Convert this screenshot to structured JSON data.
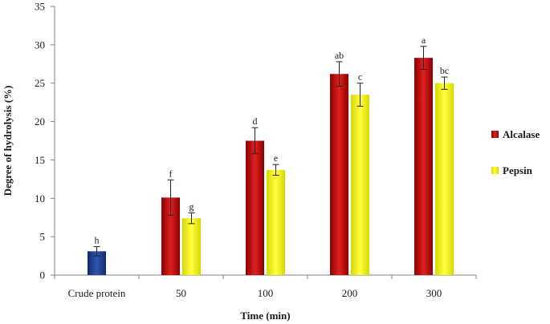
{
  "chart_data": {
    "type": "bar",
    "xlabel": "Time (min)",
    "ylabel": "Degree of hydrolysis (%)",
    "ylim": [
      0,
      35
    ],
    "yticks": [
      0,
      5,
      10,
      15,
      20,
      25,
      30,
      35
    ],
    "categories": [
      "Crude protein",
      "50",
      "100",
      "200",
      "300"
    ],
    "crude_protein": {
      "value": 3.1,
      "error": 0.6,
      "letter": "h",
      "color": "#1f3c88"
    },
    "series": [
      {
        "name": "Alcalase",
        "color": "#c00000",
        "values": [
          null,
          10.1,
          17.5,
          26.2,
          28.3
        ],
        "errors": [
          null,
          2.3,
          1.7,
          1.6,
          1.5
        ],
        "letters": [
          "",
          "f",
          "d",
          "ab",
          "a"
        ]
      },
      {
        "name": "Pepsin",
        "color": "#ffff00",
        "values": [
          null,
          7.4,
          13.7,
          23.5,
          25.0
        ],
        "errors": [
          null,
          0.7,
          0.7,
          1.5,
          0.8
        ],
        "letters": [
          "",
          "g",
          "e",
          "c",
          "bc"
        ]
      }
    ],
    "legend_position": "right",
    "grid": false
  }
}
